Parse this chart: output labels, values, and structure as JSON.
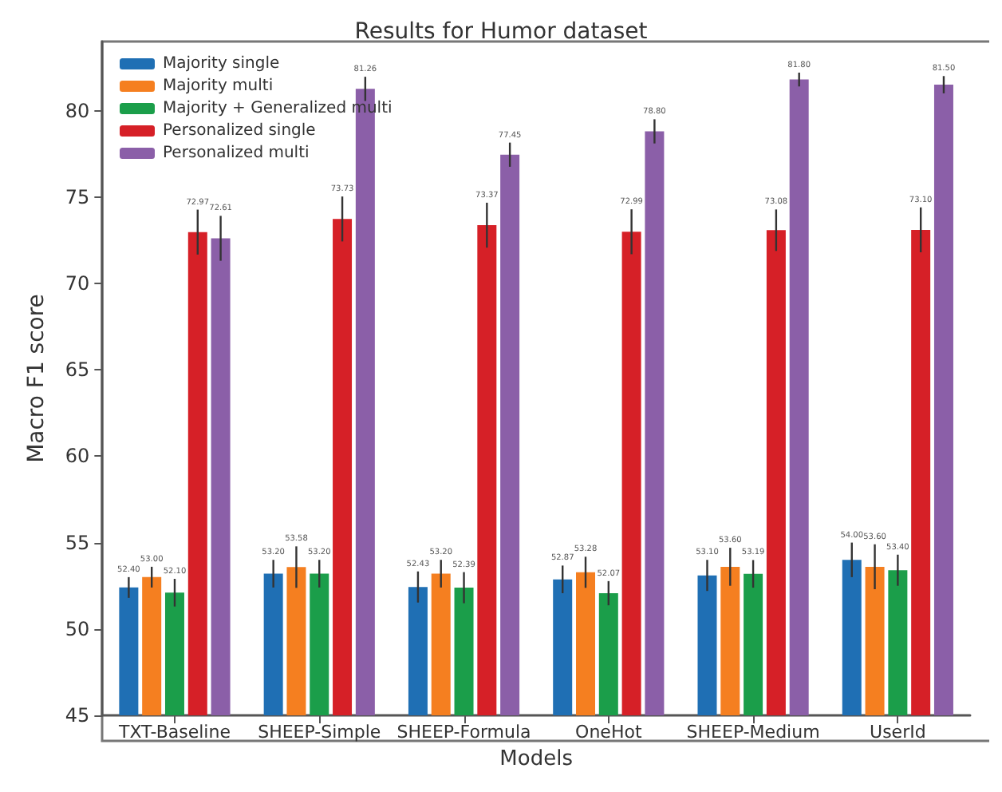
{
  "chart_data": {
    "type": "bar",
    "title": "Results for Humor dataset",
    "xlabel": "Models",
    "ylabel": "Macro F1 score",
    "categories": [
      "TXT-Baseline",
      "SHEEP-Simple",
      "SHEEP-Formula",
      "OneHot",
      "SHEEP-Medium",
      "UserId"
    ],
    "series": [
      {
        "name": "Majority single",
        "color": "#1f6fb4",
        "values": [
          52.4,
          53.2,
          52.43,
          52.87,
          53.1,
          54.0
        ],
        "errors": [
          0.6,
          0.8,
          0.9,
          0.8,
          0.9,
          1.0
        ],
        "value_labels": [
          "52.40",
          "53.20",
          "52.43",
          "52.87",
          "53.10",
          "54.00"
        ]
      },
      {
        "name": "Majority multi",
        "color": "#f57f20",
        "values": [
          53.0,
          53.58,
          53.2,
          53.28,
          53.6,
          53.6
        ],
        "errors": [
          0.6,
          1.2,
          0.8,
          0.9,
          1.1,
          1.3
        ],
        "value_labels": [
          "53.00",
          "53.58",
          "53.20",
          "53.28",
          "53.60",
          "53.60"
        ]
      },
      {
        "name": "Majority + Generalized multi",
        "color": "#1b9e4a",
        "values": [
          52.1,
          53.2,
          52.39,
          52.07,
          53.19,
          53.4
        ],
        "errors": [
          0.8,
          0.8,
          0.9,
          0.7,
          0.8,
          0.9
        ],
        "value_labels": [
          "52.10",
          "53.20",
          "52.39",
          "52.07",
          "53.19",
          "53.40"
        ]
      },
      {
        "name": "Personalized single",
        "color": "#d62027",
        "values": [
          72.97,
          73.73,
          73.37,
          72.99,
          73.08,
          73.1
        ],
        "errors": [
          1.3,
          1.3,
          1.3,
          1.3,
          1.2,
          1.3
        ],
        "value_labels": [
          "72.97",
          "73.73",
          "73.37",
          "72.99",
          "73.08",
          "73.10"
        ]
      },
      {
        "name": "Personalized multi",
        "color": "#8b5fa8",
        "values": [
          72.61,
          81.26,
          77.45,
          78.8,
          81.8,
          81.5
        ],
        "errors": [
          1.3,
          0.7,
          0.7,
          0.7,
          0.4,
          0.5
        ],
        "value_labels": [
          "72.61",
          "81.26",
          "77.45",
          "78.80",
          "81.80",
          "81.50"
        ]
      }
    ],
    "ylim": [
      45,
      84
    ],
    "yticks": [
      45,
      50,
      55,
      60,
      65,
      70,
      75,
      80
    ],
    "grid": false,
    "legend": "top left"
  }
}
